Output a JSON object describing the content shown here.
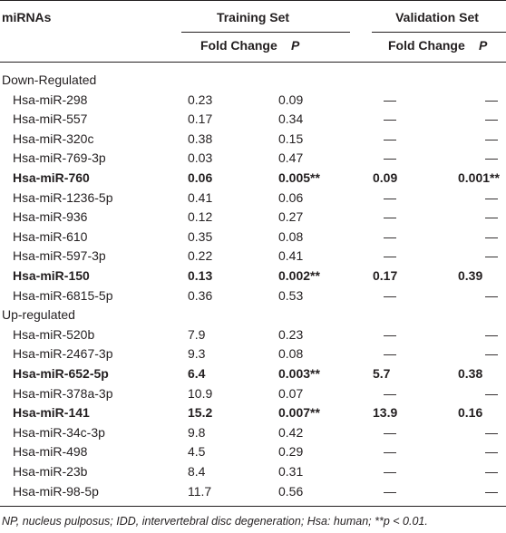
{
  "table": {
    "header": {
      "first": "miRNAs",
      "training": "Training Set",
      "validation": "Validation Set",
      "training_sub": [
        "Fold Change",
        "P"
      ],
      "validation_sub": [
        "Fold Change",
        "P"
      ]
    },
    "groups": [
      {
        "label": "Down-Regulated",
        "rows": [
          {
            "cells": [
              "Hsa-miR-298",
              "0.23",
              "0.09",
              "—",
              "—"
            ]
          },
          {
            "cells": [
              "Hsa-miR-557",
              "0.17",
              "0.34",
              "—",
              "—"
            ]
          },
          {
            "cells": [
              "Hsa-miR-320c",
              "0.38",
              "0.15",
              "—",
              "—"
            ]
          },
          {
            "cells": [
              "Hsa-miR-769-3p",
              "0.03",
              "0.47",
              "—",
              "—"
            ]
          },
          {
            "cells": [
              "Hsa-miR-760",
              "0.06",
              "0.005**",
              "0.09",
              "0.001**"
            ],
            "bold": true
          },
          {
            "cells": [
              "Hsa-miR-1236-5p",
              "0.41",
              "0.06",
              "—",
              "—"
            ]
          },
          {
            "cells": [
              "Hsa-miR-936",
              "0.12",
              "0.27",
              "—",
              "—"
            ]
          },
          {
            "cells": [
              "Hsa-miR-610",
              "0.35",
              "0.08",
              "—",
              "—"
            ]
          },
          {
            "cells": [
              "Hsa-miR-597-3p",
              "0.22",
              "0.41",
              "—",
              "—"
            ]
          },
          {
            "cells": [
              "Hsa-miR-150",
              "0.13",
              "0.002**",
              "0.17",
              "0.39"
            ],
            "bold": true
          },
          {
            "cells": [
              "Hsa-miR-6815-5p",
              "0.36",
              "0.53",
              "—",
              "—"
            ]
          }
        ]
      },
      {
        "label": "Up-regulated",
        "rows": [
          {
            "cells": [
              "Hsa-miR-520b",
              "7.9",
              "0.23",
              "—",
              "—"
            ]
          },
          {
            "cells": [
              "Hsa-miR-2467-3p",
              "9.3",
              "0.08",
              "—",
              "—"
            ]
          },
          {
            "cells": [
              "Hsa-miR-652-5p",
              "6.4",
              "0.003**",
              "5.7",
              "0.38"
            ],
            "bold": true
          },
          {
            "cells": [
              "Hsa-miR-378a-3p",
              "10.9",
              "0.07",
              "—",
              "—"
            ]
          },
          {
            "cells": [
              "Hsa-miR-141",
              "15.2",
              "0.007**",
              "13.9",
              "0.16"
            ],
            "bold": true
          },
          {
            "cells": [
              "Hsa-miR-34c-3p",
              "9.8",
              "0.42",
              "—",
              "—"
            ]
          },
          {
            "cells": [
              "Hsa-miR-498",
              "4.5",
              "0.29",
              "—",
              "—"
            ]
          },
          {
            "cells": [
              "Hsa-miR-23b",
              "8.4",
              "0.31",
              "—",
              "—"
            ]
          },
          {
            "cells": [
              "Hsa-miR-98-5p",
              "11.7",
              "0.56",
              "—",
              "—"
            ]
          }
        ]
      }
    ],
    "footnote": "NP, nucleus pulposus; IDD, intervertebral disc degeneration; Hsa: human; **p < 0.01."
  }
}
